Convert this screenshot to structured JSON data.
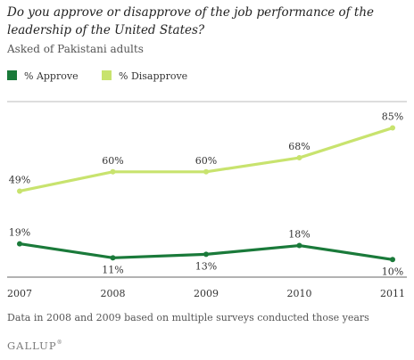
{
  "title": "Do you approve or disapprove of the job performance of the leadership of the United States?",
  "subtitle": "Asked of Pakistani adults",
  "note": "Data in 2008 and 2009 based on multiple surveys conducted those years",
  "brand": "GALLUP",
  "brand_mark": "®",
  "colors": {
    "approve": "#1a7a3a",
    "disapprove": "#c8e36e"
  },
  "chart_data": {
    "type": "line",
    "x": [
      "2007",
      "2008",
      "2009",
      "2010",
      "2011"
    ],
    "ylim": [
      0,
      100
    ],
    "grid": false,
    "legend": "top-left",
    "series": [
      {
        "name": "% Approve",
        "values": [
          19,
          11,
          13,
          18,
          10
        ],
        "labels": [
          "19%",
          "11%",
          "13%",
          "18%",
          "10%"
        ],
        "color": "#1a7a3a"
      },
      {
        "name": "% Disapprove",
        "values": [
          49,
          60,
          60,
          68,
          85
        ],
        "labels": [
          "49%",
          "60%",
          "60%",
          "68%",
          "85%"
        ],
        "color": "#c8e36e"
      }
    ]
  }
}
